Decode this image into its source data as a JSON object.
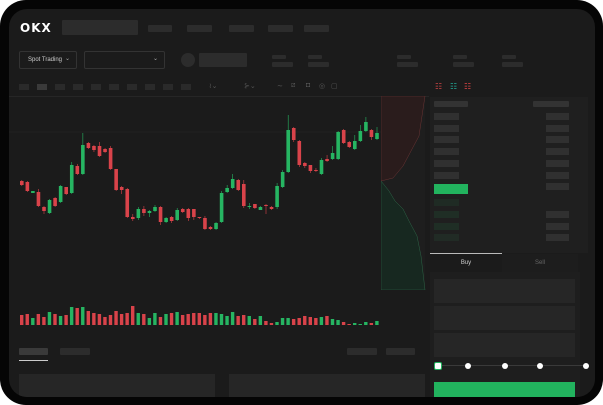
{
  "header": {
    "logo": "OKX"
  },
  "toolbar": {
    "market_type": "Spot Trading"
  },
  "order_form": {
    "tabs": [
      {
        "label": "Buy",
        "active": true
      },
      {
        "label": "Sell",
        "active": false
      }
    ],
    "slider_percent": 0
  },
  "colors": {
    "up": "#26b562",
    "down": "#d9434a",
    "accent": "#22b35e",
    "background": "#1b1b1b"
  },
  "icons": [
    "chevron-down-icon",
    "indicator-icon",
    "line-icon",
    "ruler-icon",
    "camera-icon",
    "settings-icon",
    "fullscreen-icon",
    "orderbook-both-icon",
    "orderbook-bids-icon",
    "orderbook-asks-icon"
  ],
  "candles": [
    [
      69,
      70,
      64,
      65
    ],
    [
      68,
      69,
      58,
      59
    ],
    [
      57,
      59,
      57,
      59
    ],
    [
      58,
      61,
      43,
      44
    ],
    [
      43,
      44,
      36,
      39
    ],
    [
      37,
      51,
      36,
      50
    ],
    [
      52,
      53,
      43,
      44
    ],
    [
      48,
      65,
      47,
      64
    ],
    [
      63,
      63,
      55,
      56
    ],
    [
      57,
      88,
      56,
      85
    ],
    [
      84,
      86,
      75,
      76
    ],
    [
      76,
      117,
      75,
      105
    ],
    [
      107,
      108,
      101,
      102
    ],
    [
      104,
      105,
      98,
      100
    ],
    [
      104,
      108,
      93,
      94
    ],
    [
      101,
      102,
      97,
      98
    ],
    [
      102,
      104,
      80,
      81
    ],
    [
      81,
      81,
      59,
      60
    ],
    [
      63,
      64,
      56,
      60
    ],
    [
      61,
      62,
      32,
      33
    ],
    [
      33,
      36,
      29,
      31
    ],
    [
      32,
      43,
      30,
      41
    ],
    [
      41,
      44,
      34,
      37
    ],
    [
      37,
      40,
      33,
      39
    ],
    [
      39,
      45,
      38,
      43
    ],
    [
      43,
      44,
      25,
      28
    ],
    [
      28,
      33,
      27,
      32
    ],
    [
      33,
      34,
      27,
      29
    ],
    [
      30,
      42,
      29,
      40
    ],
    [
      41,
      42,
      37,
      38
    ],
    [
      41,
      42,
      29,
      32
    ],
    [
      41,
      41,
      30,
      33
    ],
    [
      33,
      33,
      31,
      32
    ],
    [
      32,
      34,
      20,
      21
    ],
    [
      23,
      24,
      20,
      21
    ],
    [
      21,
      28,
      20,
      27
    ],
    [
      28,
      59,
      27,
      57
    ],
    [
      58,
      65,
      57,
      62
    ],
    [
      62,
      76,
      61,
      71
    ],
    [
      70,
      71,
      59,
      60
    ],
    [
      66,
      70,
      42,
      44
    ],
    [
      43,
      47,
      41,
      44
    ],
    [
      46,
      46,
      41,
      42
    ],
    [
      40,
      44,
      40,
      43
    ],
    [
      45,
      46,
      36,
      44
    ],
    [
      43,
      44,
      40,
      41
    ],
    [
      43,
      67,
      41,
      64
    ],
    [
      63,
      80,
      62,
      78
    ],
    [
      78,
      135,
      77,
      120
    ],
    [
      122,
      123,
      108,
      110
    ],
    [
      109,
      110,
      83,
      85
    ],
    [
      87,
      88,
      82,
      84
    ],
    [
      85,
      85,
      77,
      79
    ],
    [
      80,
      82,
      78,
      79
    ],
    [
      76,
      92,
      75,
      90
    ],
    [
      91,
      95,
      88,
      89
    ],
    [
      91,
      104,
      90,
      97
    ],
    [
      91,
      119,
      90,
      118
    ],
    [
      120,
      121,
      106,
      107
    ],
    [
      108,
      109,
      102,
      103
    ],
    [
      101,
      115,
      100,
      109
    ],
    [
      109,
      125,
      108,
      119
    ],
    [
      119,
      133,
      118,
      128
    ],
    [
      120,
      121,
      110,
      113
    ],
    [
      111,
      123,
      110,
      117
    ]
  ],
  "volumes": [
    10,
    11,
    7,
    11,
    8,
    13,
    11,
    9,
    10,
    18,
    17,
    18,
    14,
    12,
    11,
    8,
    10,
    14,
    11,
    12,
    19,
    12,
    11,
    7,
    12,
    8,
    11,
    12,
    13,
    10,
    11,
    12,
    12,
    10,
    12,
    12,
    11,
    9,
    13,
    9,
    10,
    9,
    6,
    9,
    4,
    2,
    3,
    7,
    7,
    6,
    7,
    9,
    8,
    7,
    8,
    9,
    6,
    5,
    3,
    1,
    2,
    1,
    3,
    2,
    4
  ]
}
